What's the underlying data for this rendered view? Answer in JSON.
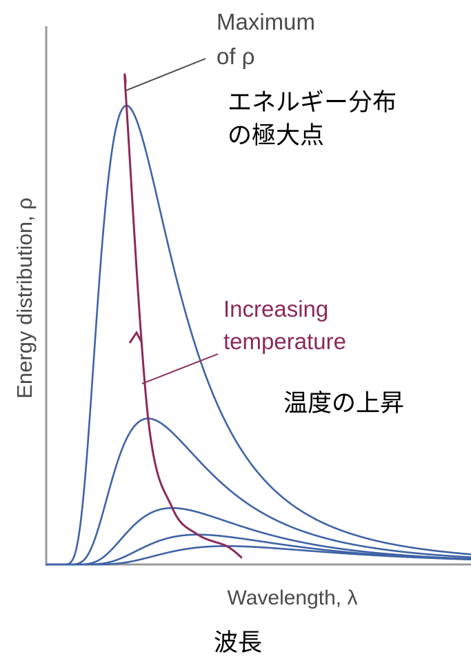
{
  "chart_data": {
    "type": "line",
    "title": "",
    "xlabel": "Wavelength, λ",
    "ylabel": "Energy distribution, ρ",
    "xlabel_translation": "波長",
    "grid": false,
    "legend": "none",
    "colors": {
      "curves": "#3f63a6",
      "maximum_locus": "#8b2a5a",
      "axes": "#9a9a9a",
      "text": "#4a4a4a",
      "temperature_text": "#8b2a5a"
    },
    "annotations": {
      "maximum": {
        "line1": "Maximum",
        "line2": "of ρ",
        "translation_line1": "エネルギー分布",
        "translation_line2": "の極大点"
      },
      "temperature": {
        "line1": "Increasing",
        "line2": "temperature",
        "translation": "温度の上昇"
      }
    },
    "x_range": [
      0,
      1
    ],
    "y_range": [
      0,
      1
    ],
    "series": [
      {
        "peak_x": 0.189,
        "peak_y": 1.0
      },
      {
        "peak_x": 0.24,
        "peak_y": 0.318
      },
      {
        "peak_x": 0.297,
        "peak_y": 0.123
      },
      {
        "peak_x": 0.357,
        "peak_y": 0.065
      },
      {
        "peak_x": 0.425,
        "peak_y": 0.04
      }
    ]
  }
}
